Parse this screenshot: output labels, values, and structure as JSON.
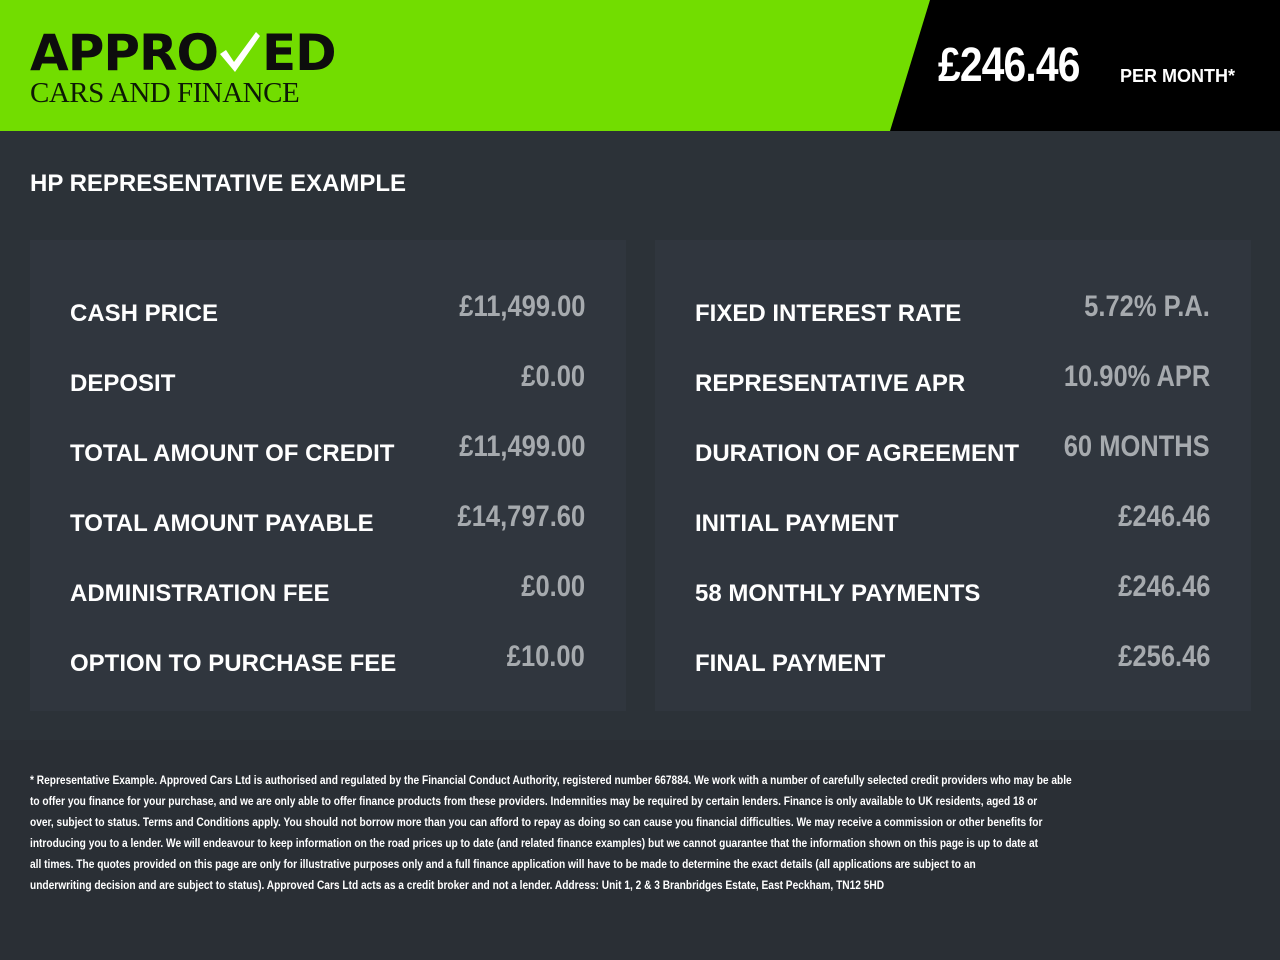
{
  "brand": {
    "logo_top_a": "APPRO",
    "logo_top_b": "ED",
    "logo_bottom": "CARS AND FINANCE",
    "accent": "#72dd00"
  },
  "header": {
    "price": "£246.46",
    "per_month": "PER MONTH*"
  },
  "title": "HP REPRESENTATIVE EXAMPLE",
  "left": [
    {
      "label": "CASH PRICE",
      "value": "£11,499.00"
    },
    {
      "label": "DEPOSIT",
      "value": "£0.00"
    },
    {
      "label": "TOTAL AMOUNT OF CREDIT",
      "value": "£11,499.00"
    },
    {
      "label": "TOTAL AMOUNT PAYABLE",
      "value": "£14,797.60"
    },
    {
      "label": "ADMINISTRATION FEE",
      "value": "£0.00"
    },
    {
      "label": "OPTION TO PURCHASE FEE",
      "value": "£10.00"
    }
  ],
  "right": [
    {
      "label": "FIXED INTEREST RATE",
      "value": "5.72% P.A."
    },
    {
      "label": "REPRESENTATIVE APR",
      "value": "10.90% APR"
    },
    {
      "label": "DURATION OF AGREEMENT",
      "value": "60 MONTHS"
    },
    {
      "label": "INITIAL PAYMENT",
      "value": "£246.46"
    },
    {
      "label": "58 MONTHLY PAYMENTS",
      "value": "£246.46"
    },
    {
      "label": "FINAL PAYMENT",
      "value": "£256.46"
    }
  ],
  "footer": [
    "* Representative Example. Approved Cars Ltd is authorised and regulated by the Financial Conduct Authority, registered number 667884. We work with a number of carefully selected credit providers who may be able",
    "to offer you finance for your purchase, and we are only able to offer finance products from these providers. Indemnities may be required by certain lenders. Finance is only available to UK residents, aged 18 or",
    "over, subject to status. Terms and Conditions apply. You should not borrow more than you can afford to repay as doing so can cause you financial difficulties. We may receive a commission or other benefits for",
    "introducing you to a lender. We will endeavour to keep information on the road prices up to date (and related finance examples) but we cannot guarantee that the information shown on this page is up to date at",
    "all times. The quotes provided on this page are only for illustrative purposes only and a full finance application will have to be made to determine the exact details (all applications are subject to an",
    "underwriting decision and are subject to status). Approved Cars Ltd acts as a credit broker and not a lender. Address: Unit 1, 2 & 3 Branbridges Estate, East Peckham, TN12 5HD"
  ]
}
